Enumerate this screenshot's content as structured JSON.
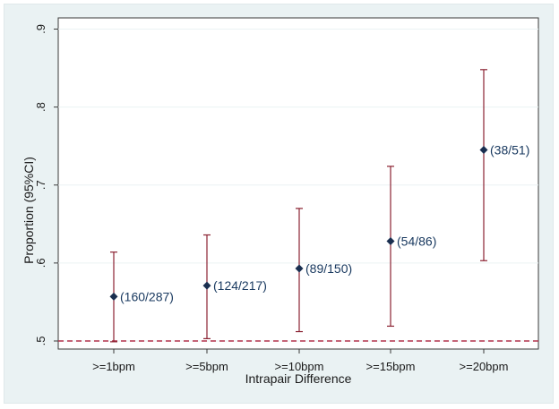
{
  "chart_data": {
    "type": "scatter",
    "title": "",
    "xlabel": "Intrapair Difference",
    "ylabel": "Proportion (95%CI)",
    "categories": [
      ">=1bpm",
      ">=5bpm",
      ">=10bpm",
      ">=15bpm",
      ">=20bpm"
    ],
    "y_ticks": [
      ".5",
      ".6",
      ".7",
      ".8",
      ".9"
    ],
    "ylim": [
      0.5,
      0.9
    ],
    "grid": true,
    "reference_line": 0.5,
    "points": [
      {
        "category": ">=1bpm",
        "estimate": 0.557,
        "ci_low": 0.499,
        "ci_high": 0.614,
        "label": "(160/287)"
      },
      {
        "category": ">=5bpm",
        "estimate": 0.571,
        "ci_low": 0.503,
        "ci_high": 0.636,
        "label": "(124/217)"
      },
      {
        "category": ">=10bpm",
        "estimate": 0.593,
        "ci_low": 0.512,
        "ci_high": 0.67,
        "label": "(89/150)"
      },
      {
        "category": ">=15bpm",
        "estimate": 0.628,
        "ci_low": 0.519,
        "ci_high": 0.724,
        "label": "(54/86)"
      },
      {
        "category": ">=20bpm",
        "estimate": 0.745,
        "ci_low": 0.603,
        "ci_high": 0.848,
        "label": "(38/51)"
      }
    ],
    "colors": {
      "ci_bar": "#8b2232",
      "marker": "#1a2f50",
      "reference_line": "#b0304a",
      "gridline": "#eaf2f3",
      "label": "#1a3a60"
    }
  }
}
